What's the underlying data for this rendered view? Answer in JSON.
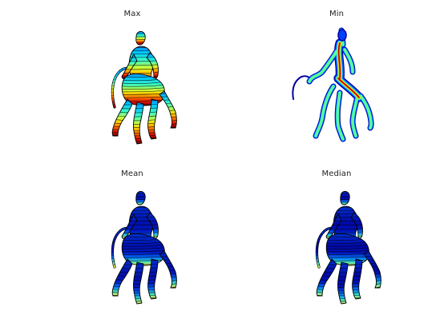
{
  "figure": {
    "panels": [
      {
        "id": "max",
        "title": "Max",
        "colormap": "jet",
        "pattern": "horizontal-bands",
        "peak": "lower-legs"
      },
      {
        "id": "min",
        "title": "Min",
        "colormap": "jet",
        "pattern": "distance-from-edge",
        "peak": "torso-core"
      },
      {
        "id": "mean",
        "title": "Mean",
        "colormap": "jet",
        "pattern": "horizontal-bands",
        "peak": "hoof-tips"
      },
      {
        "id": "median",
        "title": "Median",
        "colormap": "jet",
        "pattern": "horizontal-bands",
        "peak": "hoof-tips"
      }
    ],
    "colors": {
      "background": "#ffffff",
      "contour_line": "#000000",
      "jet_low": "#00008f",
      "jet_mid": "#7fff7f",
      "jet_high": "#800000"
    },
    "icons": [
      "centaur-mesh-icon"
    ]
  }
}
